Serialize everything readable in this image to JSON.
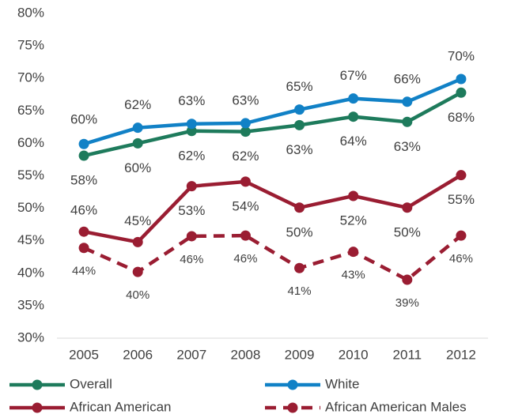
{
  "chart_data": {
    "type": "line",
    "categories": [
      "2005",
      "2006",
      "2007",
      "2008",
      "2009",
      "2010",
      "2011",
      "2012"
    ],
    "series": [
      {
        "name": "Overall",
        "color": "#1e7b5c",
        "dash": false,
        "values": [
          58.1,
          60.0,
          61.9,
          61.8,
          62.8,
          64.1,
          63.3,
          67.8
        ],
        "value_labels": [
          "58%",
          "60%",
          "62%",
          "62%",
          "63%",
          "64%",
          "63%",
          "68%"
        ]
      },
      {
        "name": "White",
        "color": "#1181c6",
        "dash": false,
        "values": [
          59.9,
          62.4,
          63.0,
          63.1,
          65.2,
          66.9,
          66.4,
          69.9
        ],
        "value_labels": [
          "60%",
          "62%",
          "63%",
          "63%",
          "65%",
          "67%",
          "66%",
          "70%"
        ]
      },
      {
        "name": "African American",
        "color": "#9a1d32",
        "dash": false,
        "values": [
          46.4,
          44.8,
          53.4,
          54.1,
          50.1,
          51.9,
          50.1,
          55.1
        ],
        "value_labels": [
          "46%",
          "45%",
          "53%",
          "54%",
          "50%",
          "52%",
          "50%",
          "55%"
        ]
      },
      {
        "name": "African American Males",
        "color": "#9a1d32",
        "dash": true,
        "values": [
          43.9,
          40.2,
          45.7,
          45.8,
          40.8,
          43.3,
          39.0,
          45.8
        ],
        "value_labels": [
          "44%",
          "40%",
          "46%",
          "46%",
          "41%",
          "43%",
          "39%",
          "46%"
        ]
      }
    ],
    "ylim": [
      30,
      80
    ],
    "yticks": [
      {
        "value": 30,
        "label": "30%"
      },
      {
        "value": 35,
        "label": "35%"
      },
      {
        "value": 40,
        "label": "40%"
      },
      {
        "value": 45,
        "label": "45%"
      },
      {
        "value": 50,
        "label": "50%"
      },
      {
        "value": 55,
        "label": "55%"
      },
      {
        "value": 60,
        "label": "60%"
      },
      {
        "value": 65,
        "label": "65%"
      },
      {
        "value": 70,
        "label": "70%"
      },
      {
        "value": 75,
        "label": "75%"
      },
      {
        "value": 80,
        "label": "80%"
      }
    ],
    "grid": false,
    "legend": "bottom"
  }
}
